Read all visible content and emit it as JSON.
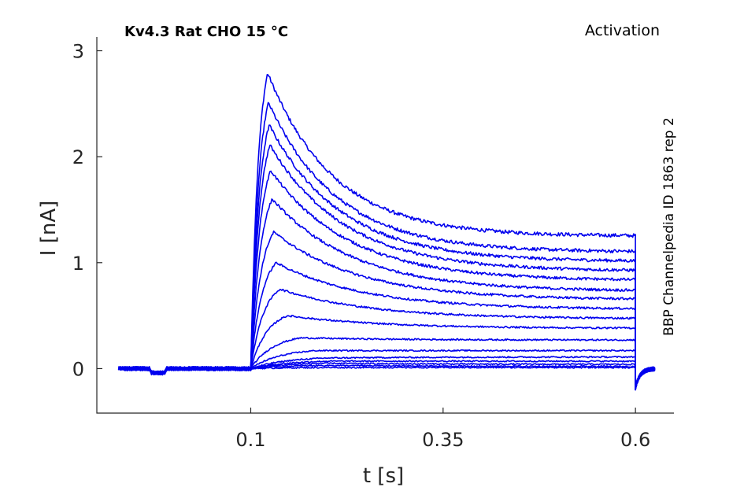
{
  "chart_data": {
    "type": "line",
    "title": "Kv4.3  Rat  CHO  15 °C",
    "protocol": "Activation",
    "source_label": "BBP Channelpedia ID 1863 rep 2",
    "xlabel": "t [s]",
    "ylabel": "I [nA]",
    "xlim": [
      -0.1,
      0.65
    ],
    "ylim": [
      -0.42,
      3.13
    ],
    "xticks": [
      0.1,
      0.35,
      0.6
    ],
    "xtick_labels": [
      "0.1",
      "0.35",
      "0.6"
    ],
    "yticks": [
      0,
      1,
      2,
      3
    ],
    "ytick_labels": [
      "0",
      "1",
      "2",
      "3"
    ],
    "grid": false,
    "legend": "none",
    "color": "#0000ee",
    "pulse_on": 0.1,
    "pulse_off": 0.6,
    "trace_start": -0.072,
    "trace_end": 0.625,
    "series": [
      {
        "peak_time": 0.122,
        "peak": 2.79,
        "end": 1.25
      },
      {
        "peak_time": 0.123,
        "peak": 2.51,
        "end": 1.1
      },
      {
        "peak_time": 0.124,
        "peak": 2.3,
        "end": 1.01
      },
      {
        "peak_time": 0.125,
        "peak": 2.11,
        "end": 0.92
      },
      {
        "peak_time": 0.126,
        "peak": 1.87,
        "end": 0.83
      },
      {
        "peak_time": 0.128,
        "peak": 1.6,
        "end": 0.73
      },
      {
        "peak_time": 0.13,
        "peak": 1.29,
        "end": 0.65
      },
      {
        "peak_time": 0.133,
        "peak": 1.0,
        "end": 0.56
      },
      {
        "peak_time": 0.138,
        "peak": 0.75,
        "end": 0.47
      },
      {
        "peak_time": 0.148,
        "peak": 0.5,
        "end": 0.38
      },
      {
        "peak_time": 0.165,
        "peak": 0.29,
        "end": 0.27
      },
      {
        "peak_time": 0.185,
        "peak": 0.17,
        "end": 0.17
      },
      {
        "peak_time": 0.2,
        "peak": 0.1,
        "end": 0.11
      },
      {
        "peak_time": 0.2,
        "peak": 0.07,
        "end": 0.07
      },
      {
        "peak_time": 0.2,
        "peak": 0.05,
        "end": 0.04
      },
      {
        "peak_time": 0.2,
        "peak": 0.03,
        "end": 0.02
      },
      {
        "peak_time": 0.2,
        "peak": 0.01,
        "end": 0.01
      }
    ]
  }
}
